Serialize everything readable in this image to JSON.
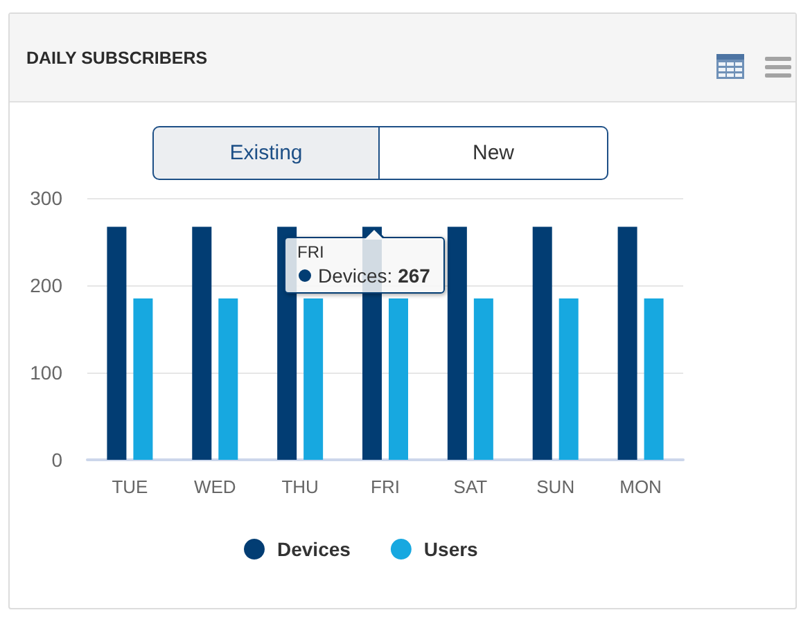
{
  "chart_data": {
    "type": "bar",
    "title": "DAILY SUBSCRIBERS",
    "categories": [
      "TUE",
      "WED",
      "THU",
      "FRI",
      "SAT",
      "SUN",
      "MON"
    ],
    "series": [
      {
        "name": "Devices",
        "color": "#023d73",
        "values": [
          267,
          267,
          267,
          267,
          267,
          267,
          267
        ]
      },
      {
        "name": "Users",
        "color": "#17a8e0",
        "values": [
          185,
          185,
          185,
          185,
          185,
          185,
          185
        ]
      }
    ],
    "ylim": [
      0,
      300
    ],
    "yticks": [
      0,
      100,
      200,
      300
    ],
    "grid": "y",
    "legend": "bottom",
    "annotations": [
      "Existing",
      "New",
      {
        "text": "FRI\nDevices: 267",
        "x": "FRI",
        "y": 267
      }
    ]
  }
}
